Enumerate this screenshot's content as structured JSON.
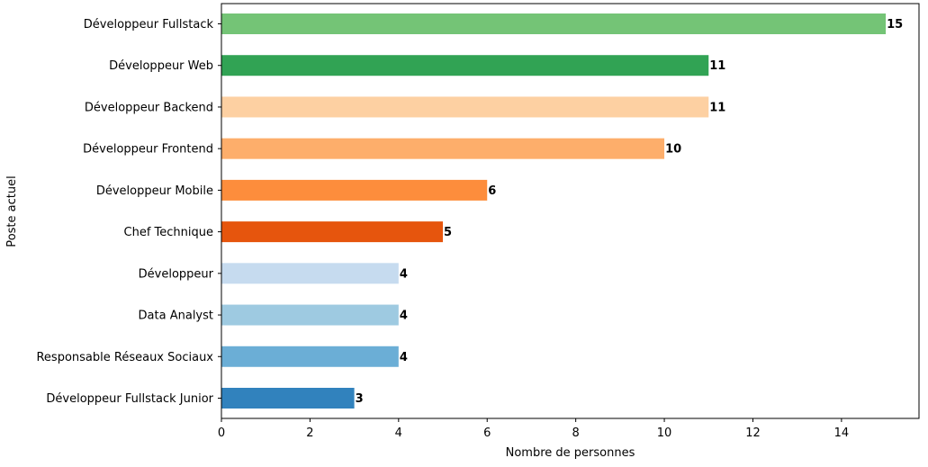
{
  "chart_data": {
    "type": "bar",
    "orientation": "horizontal",
    "title": "",
    "xlabel": "Nombre de personnes",
    "ylabel": "Poste actuel",
    "xlim": [
      0,
      15.75
    ],
    "xticks": [
      0,
      2,
      4,
      6,
      8,
      10,
      12,
      14
    ],
    "grid": false,
    "categories": [
      "Développeur Fullstack",
      "Développeur Web",
      "Développeur Backend",
      "Développeur Frontend",
      "Développeur Mobile",
      "Chef Technique",
      "Développeur",
      "Data Analyst",
      "Responsable Réseaux Sociaux",
      "Développeur Fullstack Junior"
    ],
    "values": [
      15,
      11,
      11,
      10,
      6,
      5,
      4,
      4,
      4,
      3
    ],
    "colors": [
      "#74c476",
      "#31a354",
      "#fdd0a2",
      "#fdae6b",
      "#fd8d3c",
      "#e6550d",
      "#c6dbef",
      "#9ecae1",
      "#6baed6",
      "#3182bd"
    ],
    "data_labels": [
      "15",
      "11",
      "11",
      "10",
      "6",
      "5",
      "4",
      "4",
      "4",
      "3"
    ]
  }
}
